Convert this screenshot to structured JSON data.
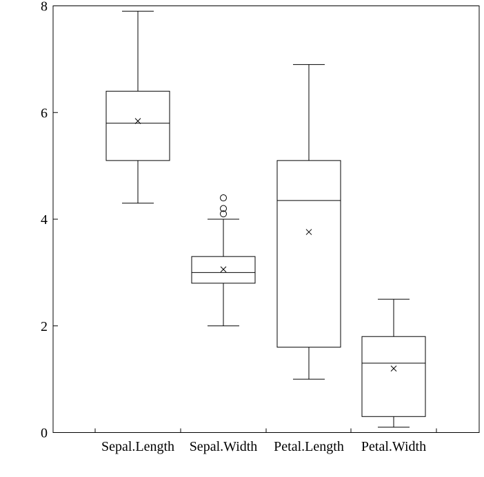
{
  "chart_data": {
    "type": "boxplot",
    "title": "",
    "xlabel": "",
    "ylabel": "",
    "ylim": [
      0,
      8
    ],
    "yticks": [
      "0",
      "2",
      "4",
      "6",
      "8"
    ],
    "grid": false,
    "categories": [
      "Sepal.Length",
      "Sepal.Width",
      "Petal.Length",
      "Petal.Width"
    ],
    "boxes": [
      {
        "name": "Sepal.Length",
        "min": 4.3,
        "q1": 5.1,
        "median": 5.8,
        "q3": 6.4,
        "max": 7.9,
        "mean": 5.84,
        "outliers": []
      },
      {
        "name": "Sepal.Width",
        "min": 2.0,
        "q1": 2.8,
        "median": 3.0,
        "q3": 3.3,
        "max": 4.0,
        "mean": 3.06,
        "outliers": [
          4.1,
          4.2,
          4.4
        ]
      },
      {
        "name": "Petal.Length",
        "min": 1.0,
        "q1": 1.6,
        "median": 4.35,
        "q3": 5.1,
        "max": 6.9,
        "mean": 3.76,
        "outliers": []
      },
      {
        "name": "Petal.Width",
        "min": 0.1,
        "q1": 0.3,
        "median": 1.3,
        "q3": 1.8,
        "max": 2.5,
        "mean": 1.2,
        "outliers": []
      }
    ]
  }
}
